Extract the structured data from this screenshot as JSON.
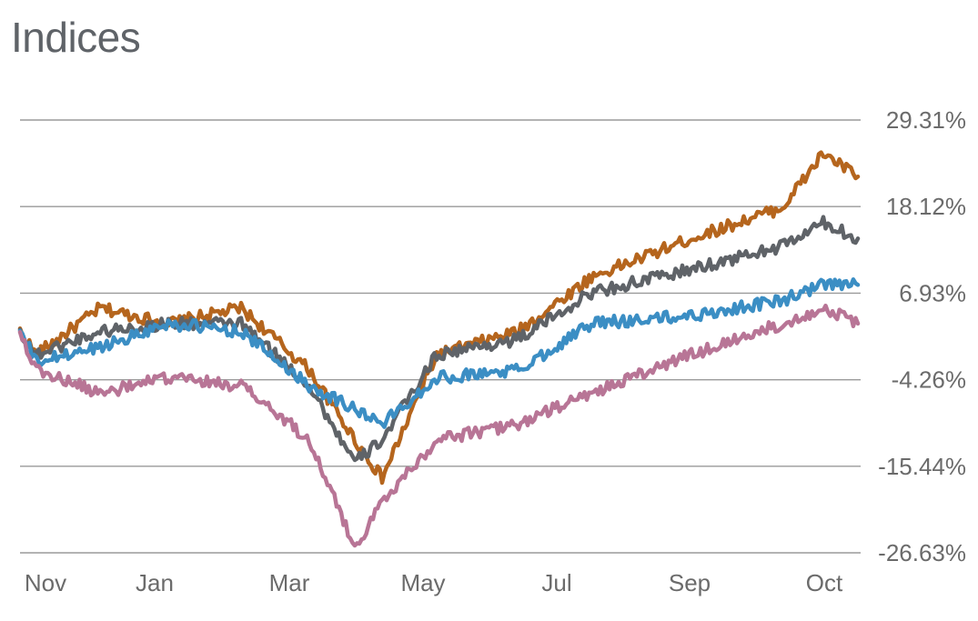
{
  "page": {
    "title": "Indices"
  },
  "chart_data": {
    "type": "line",
    "title": "Indices",
    "xlabel": "",
    "ylabel": "",
    "x_tick_labels": [
      "Nov",
      "Jan",
      "Mar",
      "May",
      "Jul",
      "Sep",
      "Oct"
    ],
    "y_ticks": [
      29.31,
      18.12,
      6.93,
      -4.26,
      -15.44,
      -26.63
    ],
    "y_tick_labels": [
      "29.31%",
      "18.12%",
      "6.93%",
      "-4.26%",
      "-15.44%",
      "-26.63%"
    ],
    "ylim": [
      -26.63,
      29.31
    ],
    "grid": true,
    "series": [
      {
        "color": "#b5651d",
        "x": [
          "Oct",
          "Nov",
          "Dec",
          "Jan",
          "Feb",
          "Mar",
          "Mar",
          "Apr",
          "May",
          "Jun",
          "Jul",
          "Aug",
          "Sep",
          "Oct",
          "Oct"
        ],
        "values": [
          2,
          -1,
          5,
          3,
          5,
          -3,
          -12,
          -17,
          -1,
          2,
          9,
          14,
          18,
          25,
          22
        ]
      },
      {
        "color": "#5f6368",
        "x": [
          "Oct",
          "Nov",
          "Dec",
          "Jan",
          "Feb",
          "Mar",
          "Mar",
          "Apr",
          "May",
          "Jun",
          "Jul",
          "Aug",
          "Sep",
          "Oct",
          "Oct"
        ],
        "values": [
          2,
          -1,
          2,
          3,
          3,
          -5,
          -15,
          -12,
          -1,
          1,
          7,
          10,
          13,
          16,
          14
        ]
      },
      {
        "color": "#3b8ec4",
        "x": [
          "Oct",
          "Nov",
          "Dec",
          "Jan",
          "Feb",
          "Mar",
          "Mar",
          "Apr",
          "May",
          "Jun",
          "Jul",
          "Aug",
          "Sep",
          "Oct",
          "Oct"
        ],
        "values": [
          2,
          -2,
          0,
          3,
          2,
          -5,
          -8,
          -10,
          -4,
          -3,
          3,
          4,
          6,
          8,
          8
        ]
      },
      {
        "color": "#b87596",
        "x": [
          "Oct",
          "Nov",
          "Dec",
          "Jan",
          "Feb",
          "Mar",
          "Mar",
          "Apr",
          "May",
          "Jun",
          "Jul",
          "Aug",
          "Sep",
          "Oct",
          "Oct"
        ],
        "values": [
          2,
          -3,
          -6,
          -4,
          -5,
          -12,
          -26,
          -20,
          -12,
          -10,
          -6,
          -1,
          3,
          5,
          3
        ]
      }
    ]
  }
}
